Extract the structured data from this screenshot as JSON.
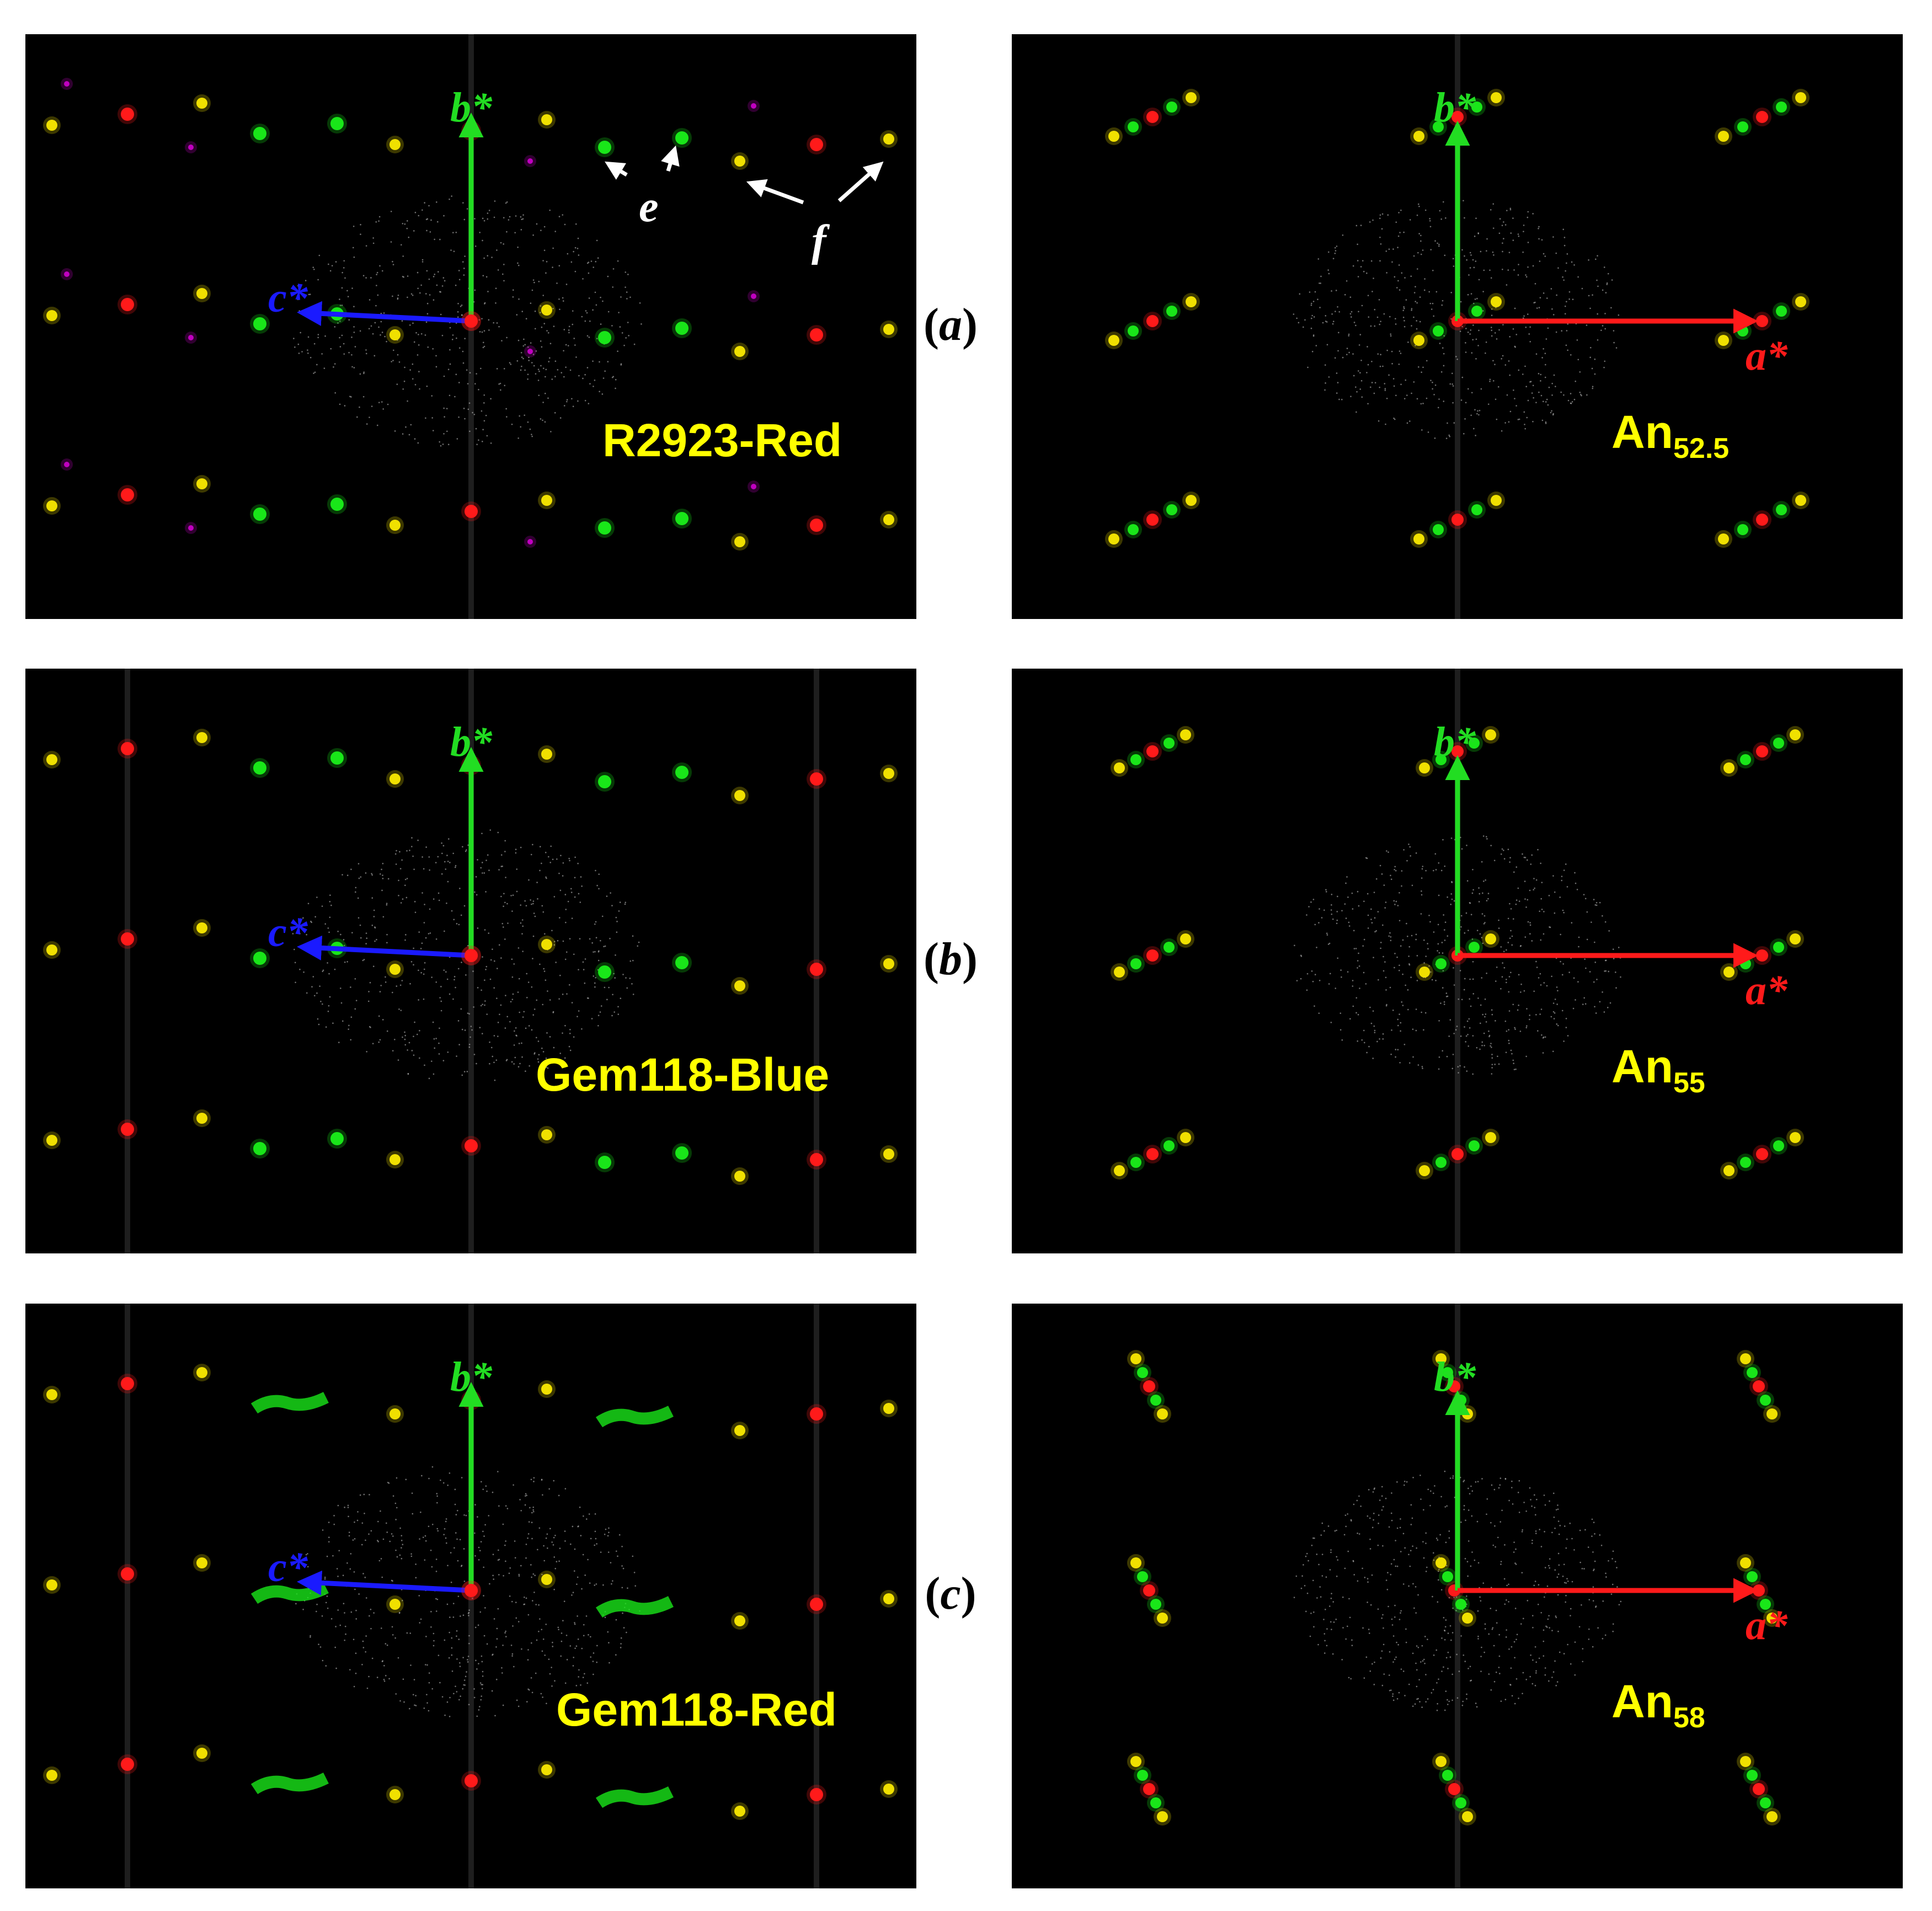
{
  "rows": [
    {
      "label_prefix": "(",
      "label_letter": "a",
      "label_suffix": ")",
      "left": {
        "sample": "R2923-Red",
        "axis_c": "c*",
        "axis_b": "b*",
        "annot_e": "e",
        "annot_f": "f"
      },
      "right": {
        "an_main": "An",
        "an_sub": "52.5",
        "axis_a": "a*",
        "axis_b": "b*"
      }
    },
    {
      "label_prefix": "(",
      "label_letter": "b",
      "label_suffix": ")",
      "left": {
        "sample": "Gem118-Blue",
        "axis_c": "c*",
        "axis_b": "b*"
      },
      "right": {
        "an_main": "An",
        "an_sub": "55",
        "axis_a": "a*",
        "axis_b": "b*"
      }
    },
    {
      "label_prefix": "(",
      "label_letter": "c",
      "label_suffix": ")",
      "left": {
        "sample": "Gem118-Red",
        "axis_c": "c*",
        "axis_b": "b*"
      },
      "right": {
        "an_main": "An",
        "an_sub": "58",
        "axis_a": "a*",
        "axis_b": "b*"
      }
    }
  ],
  "colors": {
    "background": "#000000",
    "red_spot": "#ff1a1a",
    "green_spot": "#19e619",
    "yellow_spot": "#f0e000",
    "magenta_spot": "#c000c0",
    "axis_a": "#ff1a1a",
    "axis_b": "#22dd22",
    "axis_c": "#1a1aff",
    "sample_label": "#ffff00"
  }
}
